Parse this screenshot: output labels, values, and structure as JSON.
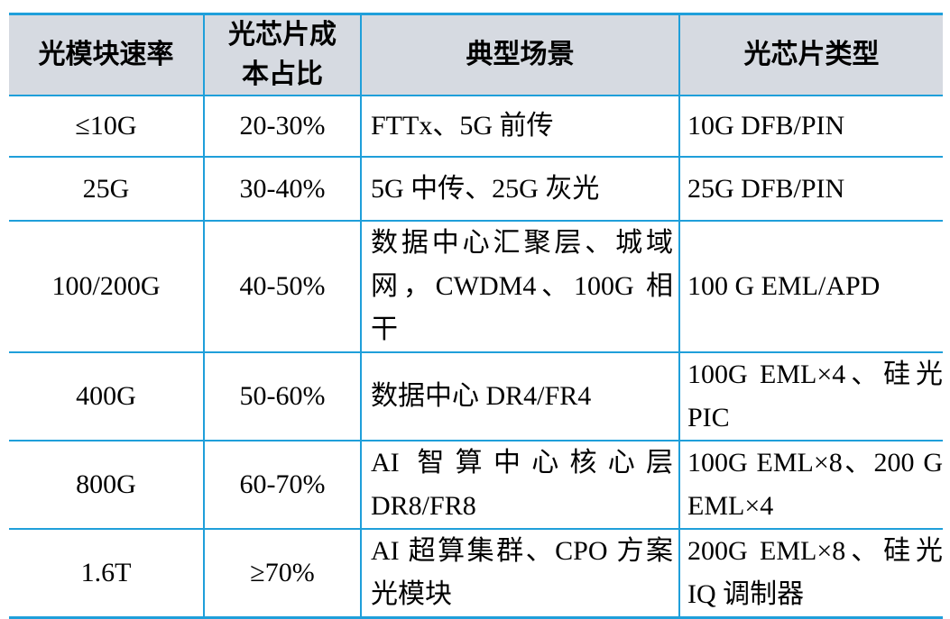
{
  "page": {
    "background": "#ffffff"
  },
  "table": {
    "border_color": "#1f9fda",
    "header_bg": "#d6dae1",
    "headers": [
      "光模块速率",
      "光芯片成\n本占比",
      "典型场景",
      "光芯片类型"
    ],
    "rows": [
      {
        "speed": "≤10G",
        "cost_share": "20-30%",
        "scenario": "FTTx、5G 前传",
        "chip_type": "10G DFB/PIN"
      },
      {
        "speed": "25G",
        "cost_share": "30-40%",
        "scenario": "5G 中传、25G 灰光",
        "chip_type": "25G DFB/PIN"
      },
      {
        "speed": "100/200G",
        "cost_share": "40-50%",
        "scenario": "数据中心汇聚层、城域网，CWDM4、100G 相干",
        "chip_type": "100 G EML/APD"
      },
      {
        "speed": "400G",
        "cost_share": "50-60%",
        "scenario": "数据中心 DR4/FR4",
        "chip_type": "100G EML×4、硅光 PIC"
      },
      {
        "speed": "800G",
        "cost_share": "60-70%",
        "scenario": "AI 智算中心核心层 DR8/FR8",
        "chip_type": "100G EML×8、200 G EML×4"
      },
      {
        "speed": "1.6T",
        "cost_share": "≥70%",
        "scenario": "AI 超算集群、CPO 方案光模块",
        "chip_type": "200G EML×8、硅光 IQ 调制器"
      }
    ]
  }
}
